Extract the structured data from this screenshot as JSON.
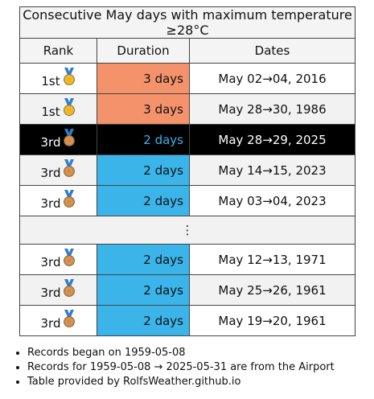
{
  "table": {
    "title": "Consecutive May days with maximum temperature ≥28°C",
    "headers": [
      "Rank",
      "Duration",
      "Dates"
    ],
    "rows": [
      {
        "rank": "1st",
        "medal_color": "#e6b422",
        "duration": "3 days",
        "color": "#f4926c",
        "dates": "May 02→04, 2016"
      },
      {
        "rank": "1st",
        "medal_color": "#e6b422",
        "duration": "3 days",
        "color": "#f4926c",
        "dates": "May 28→30, 1986"
      },
      {
        "rank": "3rd",
        "medal_color": "#cd8a4a",
        "duration": "2 days",
        "color": "#000000",
        "text_color": "#3bb4ea",
        "highlight": true,
        "dates": "May 28→29, 2025"
      },
      {
        "rank": "3rd",
        "medal_color": "#cd8a4a",
        "duration": "2 days",
        "color": "#3bb4ea",
        "dates": "May 14→15, 2023"
      },
      {
        "rank": "3rd",
        "medal_color": "#cd8a4a",
        "duration": "2 days",
        "color": "#3bb4ea",
        "dates": "May 03→04, 2023"
      }
    ],
    "ellipsis": "⋮",
    "rows_after": [
      {
        "rank": "3rd",
        "medal_color": "#cd8a4a",
        "duration": "2 days",
        "color": "#3bb4ea",
        "dates": "May 12→13, 1971"
      },
      {
        "rank": "3rd",
        "medal_color": "#cd8a4a",
        "duration": "2 days",
        "color": "#3bb4ea",
        "dates": "May 25→26, 1961"
      },
      {
        "rank": "3rd",
        "medal_color": "#cd8a4a",
        "duration": "2 days",
        "color": "#3bb4ea",
        "dates": "May 19→20, 1961"
      }
    ]
  },
  "notes": [
    "Records began on 1959-05-08",
    "Records for 1959-05-08 → 2025-05-31 are from the Airport",
    "Table provided by RolfsWeather.github.io"
  ]
}
